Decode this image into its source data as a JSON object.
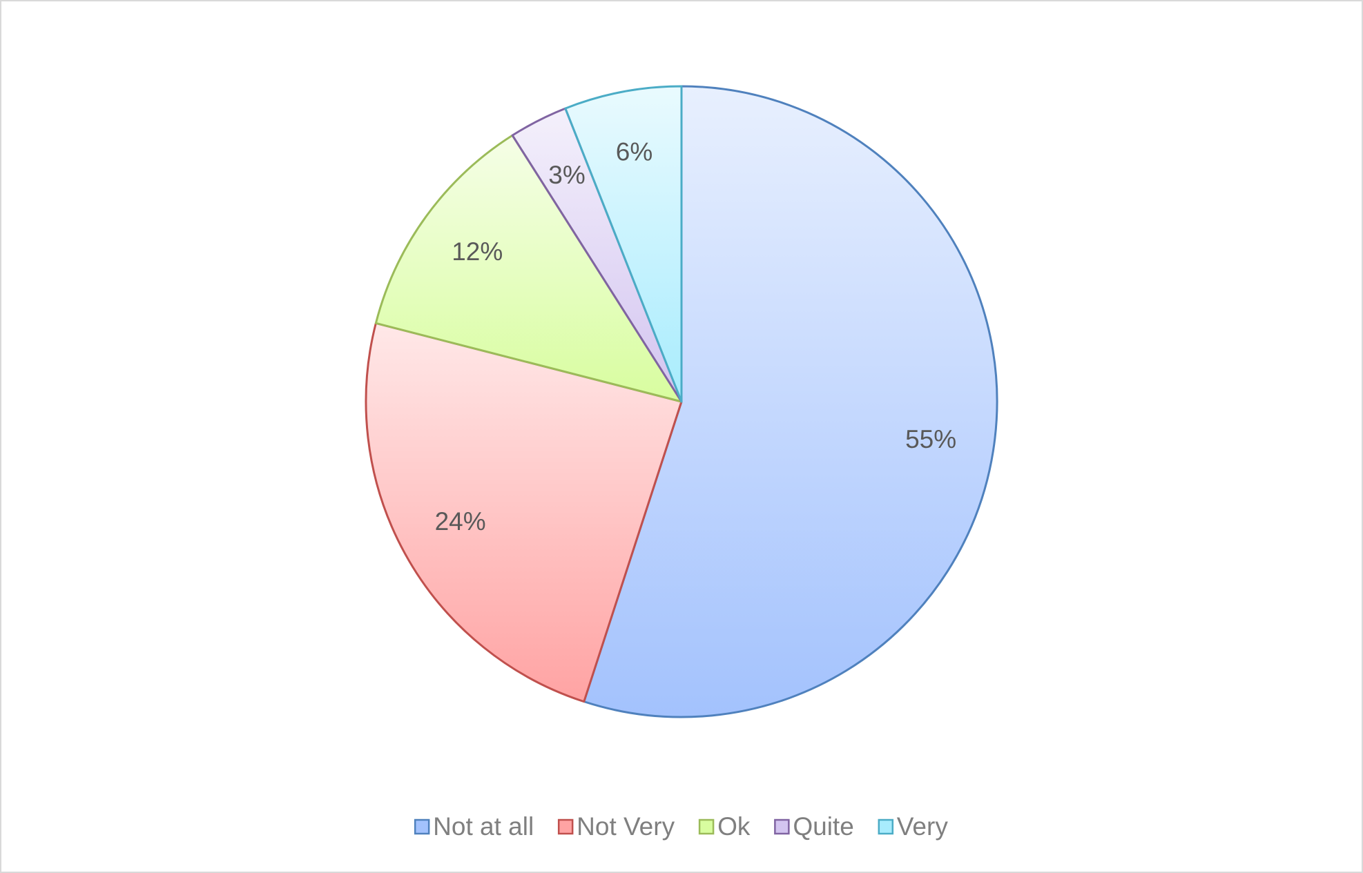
{
  "chart_data": {
    "type": "pie",
    "categories": [
      "Not at all",
      "Not Very",
      "Ok",
      "Quite",
      "Very"
    ],
    "values": [
      55,
      24,
      12,
      3,
      6
    ],
    "value_labels": [
      "55%",
      "24%",
      "12%",
      "3%",
      "6%"
    ],
    "colors": [
      "#4f81bd",
      "#c0504d",
      "#9bbb59",
      "#8064a2",
      "#4bacc6"
    ],
    "fill_colors": [
      "#a3c2fd",
      "#ffa3a3",
      "#d8fd9f",
      "#d3c4f0",
      "#a8ecfd"
    ],
    "legend": "bottom"
  }
}
